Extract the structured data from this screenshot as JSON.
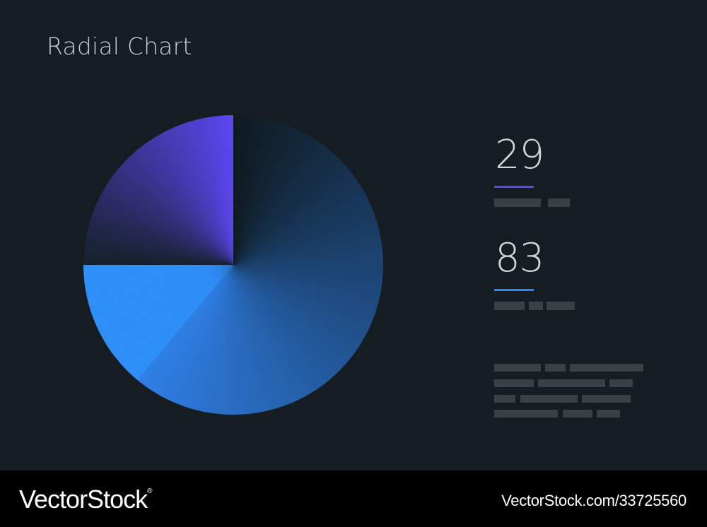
{
  "chart_data": {
    "type": "pie",
    "title": "Radial Chart",
    "slices": [
      {
        "value": 61,
        "color_start": "#0f1a20",
        "color_end": "#2f7fe6"
      },
      {
        "value": 14,
        "color_start": "#2f8ff9",
        "color_end": "#2f8ff9"
      },
      {
        "value": 25,
        "color_start": "#16202a",
        "color_end": "#5b47ef"
      }
    ],
    "stats": [
      {
        "value": "29",
        "accent": "#5a48e6"
      },
      {
        "value": "83",
        "accent": "#2f86f4"
      }
    ]
  },
  "colors": {
    "background": "#151c22",
    "placeholder": "#3a4145",
    "footer": "#000000"
  },
  "footer": {
    "brand": "VectorStock",
    "registered": "®",
    "stock_id": "VectorStock.com/33725560"
  }
}
